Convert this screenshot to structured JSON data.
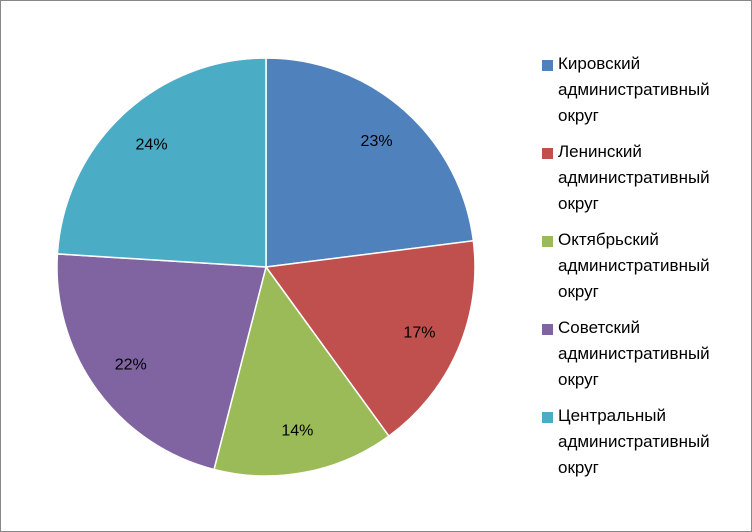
{
  "chart_data": {
    "type": "pie",
    "categories": [
      "Кировский административный округ",
      "Ленинский административный округ",
      "Октябрьский административный округ",
      "Советский административный округ",
      "Центральный административный округ"
    ],
    "values": [
      23,
      17,
      14,
      22,
      24
    ],
    "value_labels": [
      "23%",
      "17%",
      "14%",
      "22%",
      "24%"
    ],
    "colors": [
      "#4f81bd",
      "#c0504d",
      "#9bbb59",
      "#8064a2",
      "#4bacc6"
    ],
    "legend": "right"
  }
}
